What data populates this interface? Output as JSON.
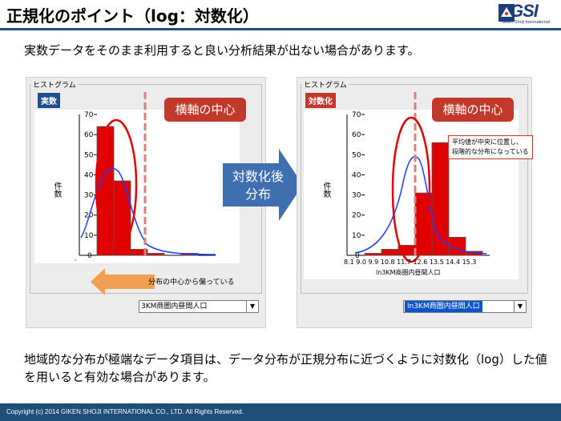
{
  "title": "正規化のポイント（log：対数化）",
  "logo": {
    "text": "GSI",
    "subtitle": "Giken Shoji International"
  },
  "lead": "実数データをそのまま利用すると良い分析結果が出ない場合があります。",
  "left_panel": {
    "group_label": "ヒストグラム",
    "tag": "実数",
    "callout": "横軸の中心",
    "ylabel": "件数",
    "y_ticks": [
      "70",
      "60",
      "50",
      "40",
      "30",
      "20",
      "10",
      "0"
    ],
    "skew_note": "分布の中心から偏っている",
    "combo_value": "3KM商圏内昼間人口"
  },
  "transform_arrow": {
    "line1": "対数化後",
    "line2": "分布"
  },
  "right_panel": {
    "group_label": "ヒストグラム",
    "tag": "対数化",
    "callout": "横軸の中心",
    "ylabel": "件数",
    "y_ticks": [
      "70",
      "60",
      "50",
      "40",
      "30",
      "20",
      "10",
      "0"
    ],
    "x_ticks": "8.1 9.0 9.9 10.8 11.7 12.6 13.5 14.4 15.3",
    "xlabel": "ln3KM商圏内昼間人口",
    "note_line1": "平均値が中央に位置し、",
    "note_line2": "段階的な分布になっている",
    "combo_value": "ln3KM商圏内昼間人口"
  },
  "bottom_text": "地域的な分布が極端なデータ項目は、データ分布が正規分布に近づくように対数化（log）した値を用いると有効な場合があります。",
  "footer": "Copyright (c) 2014 GIKEN SHOJI INTERNATIONAL CO., LTD. All Rights Reserved.",
  "colors": {
    "navy": "#1f4e79",
    "red": "#c0392b",
    "bar_red": "#e00000",
    "blue_curve": "#1e3cff",
    "arrow_blue": "#3f6fb0",
    "arrow_orange": "#f0a050"
  },
  "chart_data": [
    {
      "type": "bar",
      "ylim": [
        0,
        70
      ],
      "values": [
        64,
        37,
        3,
        1,
        0,
        1,
        0
      ],
      "curve": "normal",
      "highlight": [
        0,
        1
      ]
    },
    {
      "type": "bar",
      "x": [
        9.0,
        9.45,
        9.9,
        10.35,
        10.8,
        11.25,
        11.7,
        12.15,
        12.6,
        13.05,
        13.5
      ],
      "values": [
        1,
        3,
        5,
        31,
        56,
        9,
        2,
        0,
        0,
        0,
        0
      ],
      "ylim": [
        0,
        70
      ],
      "curve": "normal",
      "highlight": [
        3,
        4
      ]
    }
  ]
}
